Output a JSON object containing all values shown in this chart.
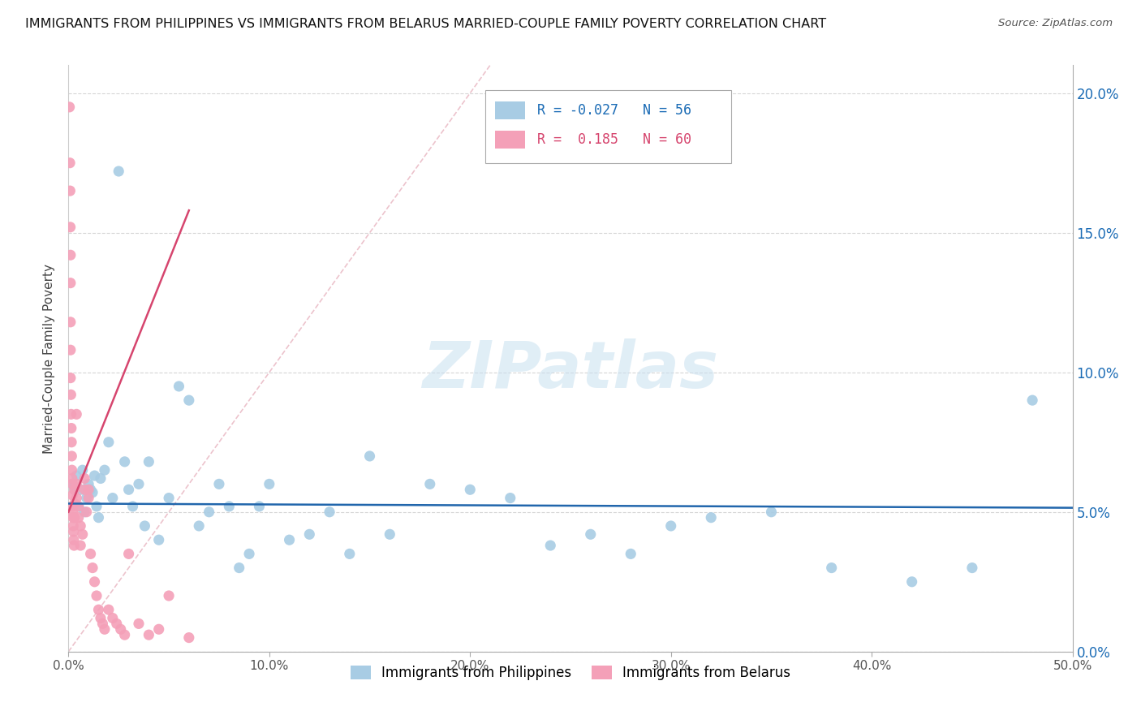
{
  "title": "IMMIGRANTS FROM PHILIPPINES VS IMMIGRANTS FROM BELARUS MARRIED-COUPLE FAMILY POVERTY CORRELATION CHART",
  "source": "Source: ZipAtlas.com",
  "ylabel": "Married-Couple Family Poverty",
  "legend1_label": "Immigrants from Philippines",
  "legend2_label": "Immigrants from Belarus",
  "r1": "-0.027",
  "n1": "56",
  "r2": "0.185",
  "n2": "60",
  "blue_color": "#a8cce4",
  "pink_color": "#f4a0b8",
  "blue_line_color": "#2166ac",
  "pink_line_color": "#d6456e",
  "diag_line_color": "#e8b4c0",
  "philippines_x": [
    0.002,
    0.003,
    0.004,
    0.005,
    0.006,
    0.007,
    0.008,
    0.009,
    0.01,
    0.011,
    0.012,
    0.013,
    0.014,
    0.015,
    0.016,
    0.018,
    0.02,
    0.022,
    0.025,
    0.028,
    0.03,
    0.032,
    0.035,
    0.038,
    0.04,
    0.045,
    0.05,
    0.055,
    0.06,
    0.065,
    0.07,
    0.075,
    0.08,
    0.085,
    0.09,
    0.095,
    0.1,
    0.11,
    0.12,
    0.13,
    0.14,
    0.15,
    0.16,
    0.18,
    0.2,
    0.22,
    0.24,
    0.26,
    0.28,
    0.3,
    0.32,
    0.35,
    0.38,
    0.42,
    0.45,
    0.48
  ],
  "philippines_y": [
    0.06,
    0.058,
    0.063,
    0.052,
    0.058,
    0.065,
    0.05,
    0.055,
    0.06,
    0.058,
    0.057,
    0.063,
    0.052,
    0.048,
    0.062,
    0.065,
    0.075,
    0.055,
    0.172,
    0.068,
    0.058,
    0.052,
    0.06,
    0.045,
    0.068,
    0.04,
    0.055,
    0.095,
    0.09,
    0.045,
    0.05,
    0.06,
    0.052,
    0.03,
    0.035,
    0.052,
    0.06,
    0.04,
    0.042,
    0.05,
    0.035,
    0.07,
    0.042,
    0.06,
    0.058,
    0.055,
    0.038,
    0.042,
    0.035,
    0.045,
    0.048,
    0.05,
    0.03,
    0.025,
    0.03,
    0.09
  ],
  "belarus_x": [
    0.0005,
    0.0007,
    0.0008,
    0.0009,
    0.001,
    0.001,
    0.001,
    0.001,
    0.001,
    0.0012,
    0.0013,
    0.0014,
    0.0015,
    0.0016,
    0.0017,
    0.0018,
    0.002,
    0.002,
    0.002,
    0.0022,
    0.0023,
    0.0024,
    0.0025,
    0.0026,
    0.0028,
    0.003,
    0.003,
    0.003,
    0.004,
    0.004,
    0.004,
    0.005,
    0.005,
    0.006,
    0.006,
    0.007,
    0.008,
    0.008,
    0.009,
    0.01,
    0.01,
    0.011,
    0.012,
    0.013,
    0.014,
    0.015,
    0.016,
    0.017,
    0.018,
    0.02,
    0.022,
    0.024,
    0.026,
    0.028,
    0.03,
    0.035,
    0.04,
    0.045,
    0.05,
    0.06
  ],
  "belarus_y": [
    0.195,
    0.175,
    0.165,
    0.152,
    0.142,
    0.132,
    0.118,
    0.108,
    0.098,
    0.092,
    0.085,
    0.08,
    0.075,
    0.07,
    0.065,
    0.062,
    0.06,
    0.056,
    0.052,
    0.05,
    0.048,
    0.045,
    0.043,
    0.04,
    0.038,
    0.058,
    0.053,
    0.048,
    0.085,
    0.06,
    0.055,
    0.052,
    0.048,
    0.045,
    0.038,
    0.042,
    0.062,
    0.058,
    0.05,
    0.058,
    0.055,
    0.035,
    0.03,
    0.025,
    0.02,
    0.015,
    0.012,
    0.01,
    0.008,
    0.015,
    0.012,
    0.01,
    0.008,
    0.006,
    0.035,
    0.01,
    0.006,
    0.008,
    0.02,
    0.005
  ],
  "xlim": [
    0.0,
    0.5
  ],
  "ylim": [
    0.0,
    0.21
  ],
  "yticks": [
    0.0,
    0.05,
    0.1,
    0.15,
    0.2
  ],
  "xticks": [
    0.0,
    0.1,
    0.2,
    0.3,
    0.4,
    0.5
  ]
}
